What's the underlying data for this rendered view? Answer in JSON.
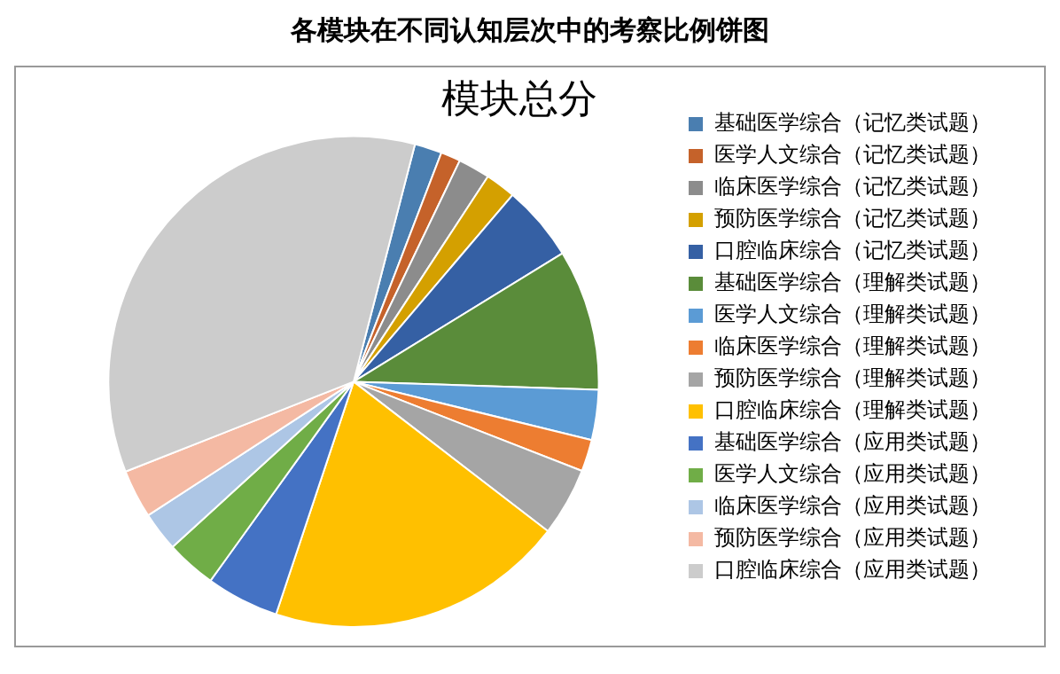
{
  "chart_data": {
    "type": "pie",
    "title": "各模块在不同认知层次中的考察比例饼图",
    "subtitle": "模块总分",
    "categories": [
      "基础医学综合（记忆类试题）",
      "医学人文综合（记忆类试题）",
      "临床医学综合（记忆类试题）",
      "预防医学综合（记忆类试题）",
      "口腔临床综合（记忆类试题）",
      "基础医学综合（理解类试题）",
      "医学人文综合（理解类试题）",
      "临床医学综合（理解类试题）",
      "预防医学综合（理解类试题）",
      "口腔临床综合（理解类试题）",
      "基础医学综合（应用类试题）",
      "医学人文综合（应用类试题）",
      "临床医学综合（应用类试题）",
      "预防医学综合（应用类试题）",
      "口腔临床综合（应用类试题）"
    ],
    "values": [
      1.8,
      1.3,
      2.1,
      2.0,
      5.0,
      9.3,
      3.3,
      2.1,
      4.5,
      19.7,
      4.8,
      3.3,
      2.6,
      3.2,
      35.0
    ],
    "colors": [
      "#4a7eb0",
      "#c5622a",
      "#8c8c8c",
      "#d4a000",
      "#3560a4",
      "#5a8c3a",
      "#5b9bd5",
      "#ed7d31",
      "#a5a5a5",
      "#ffc000",
      "#4472c4",
      "#70ad47",
      "#adc6e5",
      "#f4b9a3",
      "#cccccc"
    ],
    "legend": "right"
  }
}
